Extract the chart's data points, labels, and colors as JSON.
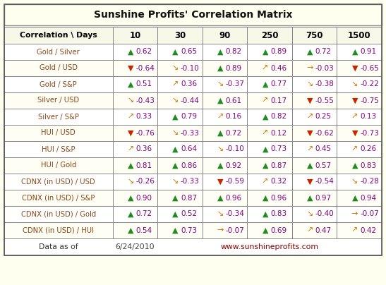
{
  "title": "Sunshine Profits' Correlation Matrix",
  "bg_color": "#FFFFF0",
  "border_color": "#888888",
  "header_text_color": "#000000",
  "label_text_color": "#8B4513",
  "value_text_color": "#800080",
  "col_headers": [
    "Correlation \\ Days",
    "10",
    "30",
    "90",
    "250",
    "750",
    "1500"
  ],
  "arrow_colors": {
    "up_green": "#228B22",
    "down_red": "#CC2200",
    "diag_up_orange": "#CC7700",
    "diag_down_orange": "#CC7700",
    "right_orange": "#CC7700"
  },
  "arrow_symbols": {
    "up_green": "▲",
    "down_red": "▼",
    "diag_up_orange": "↗",
    "diag_down_orange": "↘",
    "right_orange": "→"
  },
  "rows": [
    {
      "label": "Gold / Silver",
      "values": [
        [
          "up_green",
          "0.62"
        ],
        [
          "up_green",
          "0.65"
        ],
        [
          "up_green",
          "0.82"
        ],
        [
          "up_green",
          "0.89"
        ],
        [
          "up_green",
          "0.72"
        ],
        [
          "up_green",
          "0.91"
        ]
      ]
    },
    {
      "label": "Gold / USD",
      "values": [
        [
          "down_red",
          "-0.64"
        ],
        [
          "diag_down_orange",
          "-0.10"
        ],
        [
          "up_green",
          "0.89"
        ],
        [
          "diag_up_orange",
          "0.46"
        ],
        [
          "right_orange",
          "-0.03"
        ],
        [
          "down_red",
          "-0.65"
        ]
      ]
    },
    {
      "label": "Gold / S&P",
      "values": [
        [
          "up_green",
          "0.51"
        ],
        [
          "diag_up_orange",
          "0.36"
        ],
        [
          "diag_down_orange",
          "-0.37"
        ],
        [
          "up_green",
          "0.77"
        ],
        [
          "diag_down_orange",
          "-0.38"
        ],
        [
          "diag_down_orange",
          "-0.22"
        ]
      ]
    },
    {
      "label": "Silver / USD",
      "values": [
        [
          "diag_down_orange",
          "-0.43"
        ],
        [
          "diag_down_orange",
          "-0.44"
        ],
        [
          "up_green",
          "0.61"
        ],
        [
          "diag_up_orange",
          "0.17"
        ],
        [
          "down_red",
          "-0.55"
        ],
        [
          "down_red",
          "-0.75"
        ]
      ]
    },
    {
      "label": "Silver / S&P",
      "values": [
        [
          "diag_up_orange",
          "0.33"
        ],
        [
          "up_green",
          "0.79"
        ],
        [
          "diag_up_orange",
          "0.16"
        ],
        [
          "up_green",
          "0.82"
        ],
        [
          "diag_up_orange",
          "0.25"
        ],
        [
          "diag_up_orange",
          "0.13"
        ]
      ]
    },
    {
      "label": "HUI / USD",
      "values": [
        [
          "down_red",
          "-0.76"
        ],
        [
          "diag_down_orange",
          "-0.33"
        ],
        [
          "up_green",
          "0.72"
        ],
        [
          "diag_up_orange",
          "0.12"
        ],
        [
          "down_red",
          "-0.62"
        ],
        [
          "down_red",
          "-0.73"
        ]
      ]
    },
    {
      "label": "HUI / S&P",
      "values": [
        [
          "diag_up_orange",
          "0.36"
        ],
        [
          "up_green",
          "0.64"
        ],
        [
          "diag_down_orange",
          "-0.10"
        ],
        [
          "up_green",
          "0.73"
        ],
        [
          "diag_up_orange",
          "0.45"
        ],
        [
          "diag_up_orange",
          "0.26"
        ]
      ]
    },
    {
      "label": "HUI / Gold",
      "values": [
        [
          "up_green",
          "0.81"
        ],
        [
          "up_green",
          "0.86"
        ],
        [
          "up_green",
          "0.92"
        ],
        [
          "up_green",
          "0.87"
        ],
        [
          "up_green",
          "0.57"
        ],
        [
          "up_green",
          "0.83"
        ]
      ]
    },
    {
      "label": "CDNX (in USD) / USD",
      "values": [
        [
          "diag_down_orange",
          "-0.26"
        ],
        [
          "diag_down_orange",
          "-0.33"
        ],
        [
          "down_red",
          "-0.59"
        ],
        [
          "diag_up_orange",
          "0.32"
        ],
        [
          "down_red",
          "-0.54"
        ],
        [
          "diag_down_orange",
          "-0.28"
        ]
      ]
    },
    {
      "label": "CDNX (in USD) / S&P",
      "values": [
        [
          "up_green",
          "0.90"
        ],
        [
          "up_green",
          "0.87"
        ],
        [
          "up_green",
          "0.96"
        ],
        [
          "up_green",
          "0.96"
        ],
        [
          "up_green",
          "0.97"
        ],
        [
          "up_green",
          "0.94"
        ]
      ]
    },
    {
      "label": "CDNX (in USD) / Gold",
      "values": [
        [
          "up_green",
          "0.72"
        ],
        [
          "up_green",
          "0.52"
        ],
        [
          "diag_down_orange",
          "-0.34"
        ],
        [
          "up_green",
          "0.83"
        ],
        [
          "diag_down_orange",
          "-0.40"
        ],
        [
          "right_orange",
          "-0.07"
        ]
      ]
    },
    {
      "label": "CDNX (in USD) / HUI",
      "values": [
        [
          "up_green",
          "0.54"
        ],
        [
          "up_green",
          "0.73"
        ],
        [
          "right_orange",
          "-0.07"
        ],
        [
          "up_green",
          "0.69"
        ],
        [
          "diag_up_orange",
          "0.47"
        ],
        [
          "diag_up_orange",
          "0.42"
        ]
      ]
    }
  ],
  "footer_left": "Data as of",
  "footer_date": "6/24/2010",
  "footer_right": "www.sunshineprofits.com"
}
